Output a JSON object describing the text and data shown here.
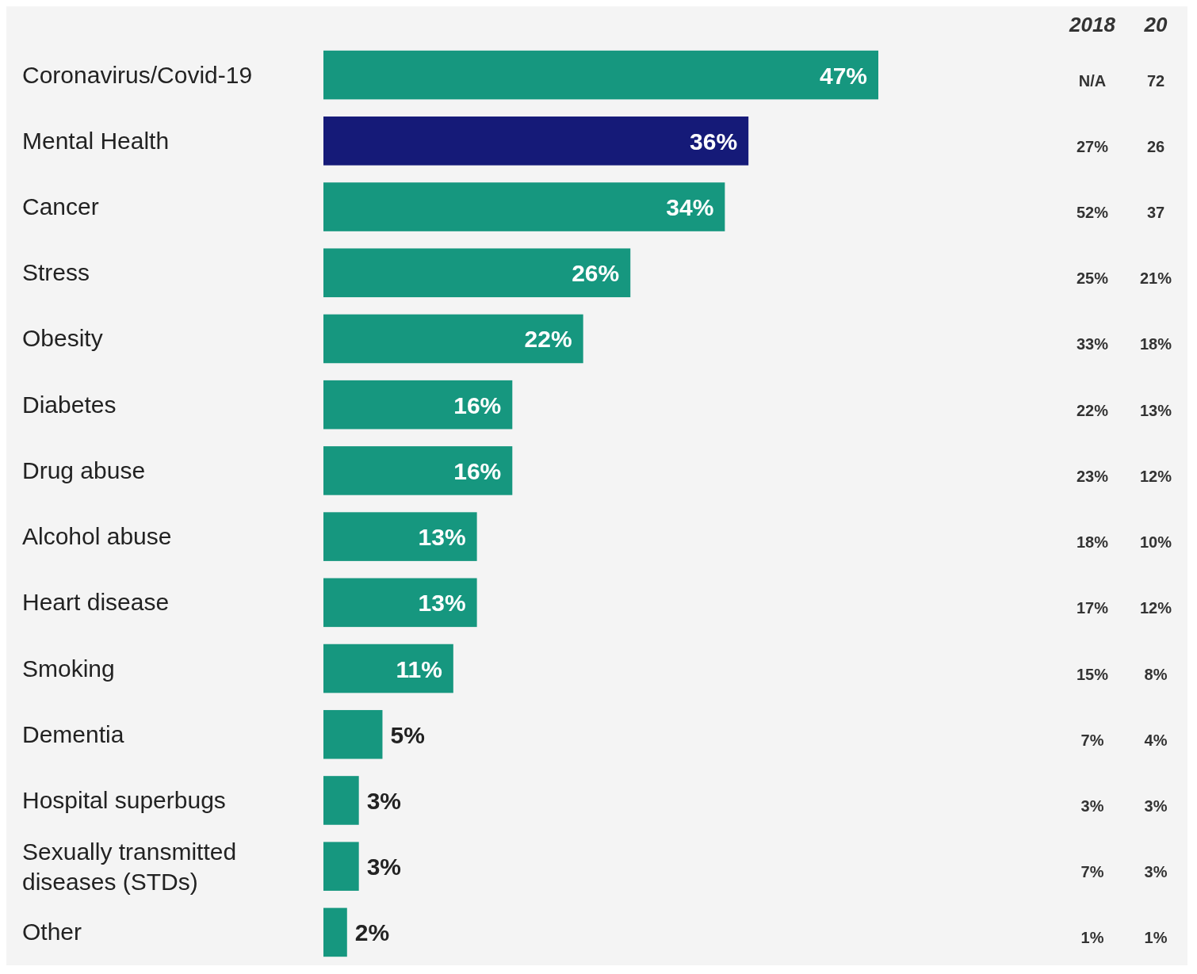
{
  "chart_data": {
    "type": "bar",
    "orientation": "horizontal",
    "categories": [
      "Coronavirus/Covid-19",
      "Mental Health",
      "Cancer",
      "Stress",
      "Obesity",
      "Diabetes",
      "Drug abuse",
      "Alcohol abuse",
      "Heart disease",
      "Smoking",
      "Dementia",
      "Hospital superbugs",
      "Sexually transmitted diseases (STDs)",
      "Other"
    ],
    "values": [
      47,
      36,
      34,
      26,
      22,
      16,
      16,
      13,
      13,
      11,
      5,
      3,
      3,
      2
    ],
    "value_labels": [
      "47%",
      "36%",
      "34%",
      "26%",
      "22%",
      "16%",
      "16%",
      "13%",
      "13%",
      "11%",
      "5%",
      "3%",
      "3%",
      "2%"
    ],
    "colors": [
      "#16977f",
      "#151a78",
      "#16977f",
      "#16977f",
      "#16977f",
      "#16977f",
      "#16977f",
      "#16977f",
      "#16977f",
      "#16977f",
      "#16977f",
      "#16977f",
      "#16977f",
      "#16977f"
    ],
    "annotations": [
      "2018",
      "N/A",
      "27%",
      "52%",
      "25%",
      "33%",
      "22%",
      "23%",
      "18%",
      "17%",
      "15%",
      "7%",
      "3%",
      "7%",
      "1%",
      "20",
      "72",
      "26",
      "37",
      "21%",
      "18%",
      "13%",
      "12%",
      "10%",
      "12%",
      "8%",
      "4%",
      "3%",
      "3%",
      "1%"
    ]
  }
}
